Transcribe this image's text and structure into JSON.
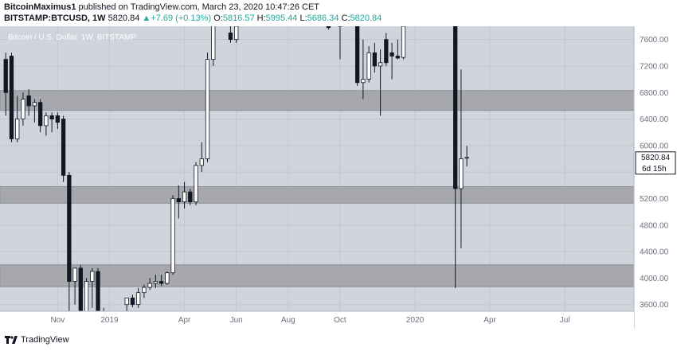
{
  "header": {
    "author": "BitcoinMaximus1",
    "published_text": "published on TradingView.com, March 23, 2020 10:47:26 CET",
    "symbol": "BITSTAMP:BTCUSD, 1W",
    "last": "5820.84",
    "change": "+7.69 (+0.13%)",
    "o_label": "O:",
    "o_value": "5816.57",
    "h_label": "H:",
    "h_value": "5995.44",
    "l_label": "L:",
    "l_value": "5686.34",
    "c_label": "C:",
    "c_value": "5820.84"
  },
  "footer": {
    "brand": "TradingView"
  },
  "chart_data": {
    "type": "candlestick",
    "title": "Bitcoin / U.S. Dollar, 1W, BITSTAMP",
    "price_label": "5820.84",
    "countdown_label": "6d 15h",
    "ylim": [
      3500,
      7800
    ],
    "y_ticks": [
      3600,
      4000,
      4400,
      4800,
      5200,
      5600,
      6000,
      6400,
      6800,
      7200,
      7600
    ],
    "x_ticks": [
      {
        "label": "Nov",
        "week": 9
      },
      {
        "label": "2019",
        "week": 18
      },
      {
        "label": "Apr",
        "week": 31
      },
      {
        "label": "Jun",
        "week": 40
      },
      {
        "label": "Aug",
        "week": 49
      },
      {
        "label": "Oct",
        "week": 58
      },
      {
        "label": "2020",
        "week": 71
      },
      {
        "label": "Apr",
        "week": 84
      },
      {
        "label": "Jul",
        "week": 97
      }
    ],
    "week_range": [
      -1,
      109
    ],
    "bands": [
      {
        "low": 6530,
        "high": 6830
      },
      {
        "low": 5130,
        "high": 5380
      },
      {
        "low": 3870,
        "high": 4200
      }
    ],
    "grid": true,
    "bull_color": "#ffffff",
    "bear_color": "#131722",
    "band_color": "#a6a8ae",
    "bg_color": "#d1d4dc",
    "candles": [
      {
        "week": 0,
        "o": 7300,
        "h": 7400,
        "l": 6450,
        "c": 6800
      },
      {
        "week": 1,
        "o": 7350,
        "h": 7400,
        "l": 6050,
        "c": 6100
      },
      {
        "week": 2,
        "o": 6100,
        "h": 6750,
        "l": 6050,
        "c": 6400
      },
      {
        "week": 3,
        "o": 6400,
        "h": 6800,
        "l": 6300,
        "c": 6700
      },
      {
        "week": 4,
        "o": 6750,
        "h": 6850,
        "l": 6450,
        "c": 6600
      },
      {
        "week": 5,
        "o": 6600,
        "h": 6700,
        "l": 6350,
        "c": 6650
      },
      {
        "week": 6,
        "o": 6650,
        "h": 6700,
        "l": 6200,
        "c": 6300
      },
      {
        "week": 7,
        "o": 6300,
        "h": 6500,
        "l": 6150,
        "c": 6450
      },
      {
        "week": 8,
        "o": 6450,
        "h": 6500,
        "l": 6200,
        "c": 6400
      },
      {
        "week": 9,
        "o": 6450,
        "h": 6500,
        "l": 6250,
        "c": 6350
      },
      {
        "week": 10,
        "o": 6400,
        "h": 6450,
        "l": 5450,
        "c": 5550
      },
      {
        "week": 11,
        "o": 5550,
        "h": 5600,
        "l": 3400,
        "c": 3950
      },
      {
        "week": 12,
        "o": 3950,
        "h": 4150,
        "l": 3600,
        "c": 4150
      },
      {
        "week": 13,
        "o": 4150,
        "h": 4200,
        "l": 3400,
        "c": 3500
      },
      {
        "week": 14,
        "o": 3500,
        "h": 4000,
        "l": 3450,
        "c": 3950
      },
      {
        "week": 15,
        "o": 3950,
        "h": 4150,
        "l": 3550,
        "c": 4100
      },
      {
        "week": 16,
        "o": 4100,
        "h": 4150,
        "l": 3450,
        "c": 3500
      },
      {
        "week": 17,
        "o": 3500,
        "h": 3550,
        "l": 3400,
        "c": 3450
      },
      {
        "week": 21,
        "o": 3600,
        "h": 3700,
        "l": 3480,
        "c": 3700
      },
      {
        "week": 22,
        "o": 3700,
        "h": 3750,
        "l": 3560,
        "c": 3600
      },
      {
        "week": 23,
        "o": 3600,
        "h": 3850,
        "l": 3550,
        "c": 3780
      },
      {
        "week": 24,
        "o": 3780,
        "h": 3900,
        "l": 3700,
        "c": 3860
      },
      {
        "week": 25,
        "o": 3860,
        "h": 4000,
        "l": 3820,
        "c": 3920
      },
      {
        "week": 26,
        "o": 3920,
        "h": 4050,
        "l": 3850,
        "c": 3950
      },
      {
        "week": 27,
        "o": 3950,
        "h": 4050,
        "l": 3880,
        "c": 3920
      },
      {
        "week": 28,
        "o": 3920,
        "h": 4100,
        "l": 3900,
        "c": 4080
      },
      {
        "week": 29,
        "o": 4080,
        "h": 5250,
        "l": 4050,
        "c": 5200
      },
      {
        "week": 30,
        "o": 5200,
        "h": 5400,
        "l": 4900,
        "c": 5150
      },
      {
        "week": 31,
        "o": 5150,
        "h": 5450,
        "l": 5050,
        "c": 5300
      },
      {
        "week": 32,
        "o": 5300,
        "h": 5350,
        "l": 5100,
        "c": 5150
      },
      {
        "week": 33,
        "o": 5150,
        "h": 5750,
        "l": 5100,
        "c": 5700
      },
      {
        "week": 34,
        "o": 5700,
        "h": 6050,
        "l": 5600,
        "c": 5800
      },
      {
        "week": 35,
        "o": 5800,
        "h": 7400,
        "l": 5750,
        "c": 7300
      },
      {
        "week": 36,
        "o": 7300,
        "h": 8000,
        "l": 7200,
        "c": 8000
      },
      {
        "week": 39,
        "o": 7700,
        "h": 7850,
        "l": 7550,
        "c": 7600
      },
      {
        "week": 40,
        "o": 7600,
        "h": 7900,
        "l": 7550,
        "c": 7800
      },
      {
        "week": 56,
        "o": 7820,
        "h": 7850,
        "l": 7750,
        "c": 7780
      },
      {
        "week": 58,
        "o": 7800,
        "h": 7850,
        "l": 7300,
        "c": 7820
      },
      {
        "week": 61,
        "o": 7950,
        "h": 8000,
        "l": 6900,
        "c": 6950
      },
      {
        "week": 62,
        "o": 6950,
        "h": 7600,
        "l": 6700,
        "c": 7000
      },
      {
        "week": 63,
        "o": 7000,
        "h": 7500,
        "l": 6950,
        "c": 7400
      },
      {
        "week": 64,
        "o": 7400,
        "h": 7550,
        "l": 7100,
        "c": 7200
      },
      {
        "week": 65,
        "o": 7200,
        "h": 7450,
        "l": 6450,
        "c": 7250
      },
      {
        "week": 66,
        "o": 7600,
        "h": 7700,
        "l": 7200,
        "c": 7250
      },
      {
        "week": 67,
        "o": 7400,
        "h": 7550,
        "l": 7000,
        "c": 7350
      },
      {
        "week": 68,
        "o": 7350,
        "h": 7600,
        "l": 7300,
        "c": 7320
      },
      {
        "week": 69,
        "o": 7330,
        "h": 8000,
        "l": 7300,
        "c": 7800
      },
      {
        "week": 78,
        "o": 7900,
        "h": 8000,
        "l": 3850,
        "c": 5350
      },
      {
        "week": 79,
        "o": 5350,
        "h": 7150,
        "l": 4450,
        "c": 5800
      },
      {
        "week": 80,
        "o": 5816.57,
        "h": 5995.44,
        "l": 5686.34,
        "c": 5820.84
      }
    ]
  }
}
